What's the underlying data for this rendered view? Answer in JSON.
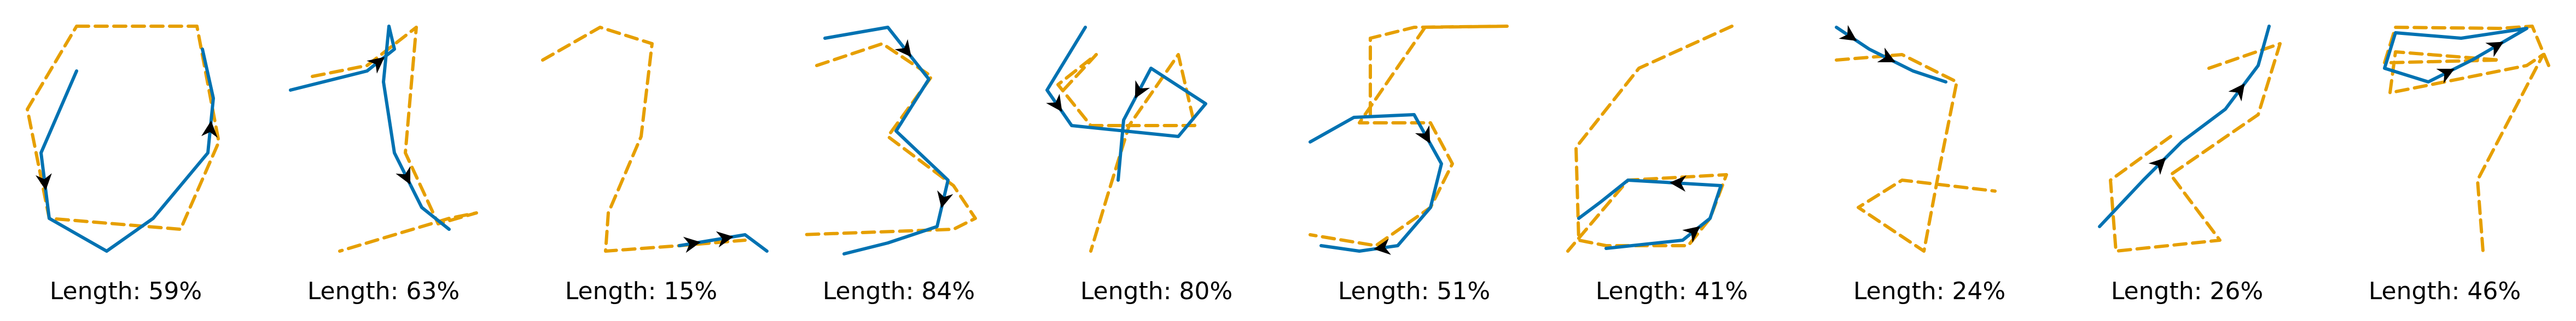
{
  "colors": {
    "learned_stroke": "#0072b2",
    "reference_stroke": "#e69f00",
    "label": "#000000",
    "background": "#ffffff"
  },
  "panels": [
    {
      "digit": "0",
      "label": "Length: 59%"
    },
    {
      "digit": "1",
      "label": "Length: 63%"
    },
    {
      "digit": "2",
      "label": "Length: 15%"
    },
    {
      "digit": "3",
      "label": "Length: 84%"
    },
    {
      "digit": "4",
      "label": "Length: 80%"
    },
    {
      "digit": "5",
      "label": "Length: 51%"
    },
    {
      "digit": "6",
      "label": "Length: 41%"
    },
    {
      "digit": "7",
      "label": "Length: 24%"
    },
    {
      "digit": "8",
      "label": "Length: 26%"
    },
    {
      "digit": "9",
      "label": "Length: 46%"
    }
  ]
}
